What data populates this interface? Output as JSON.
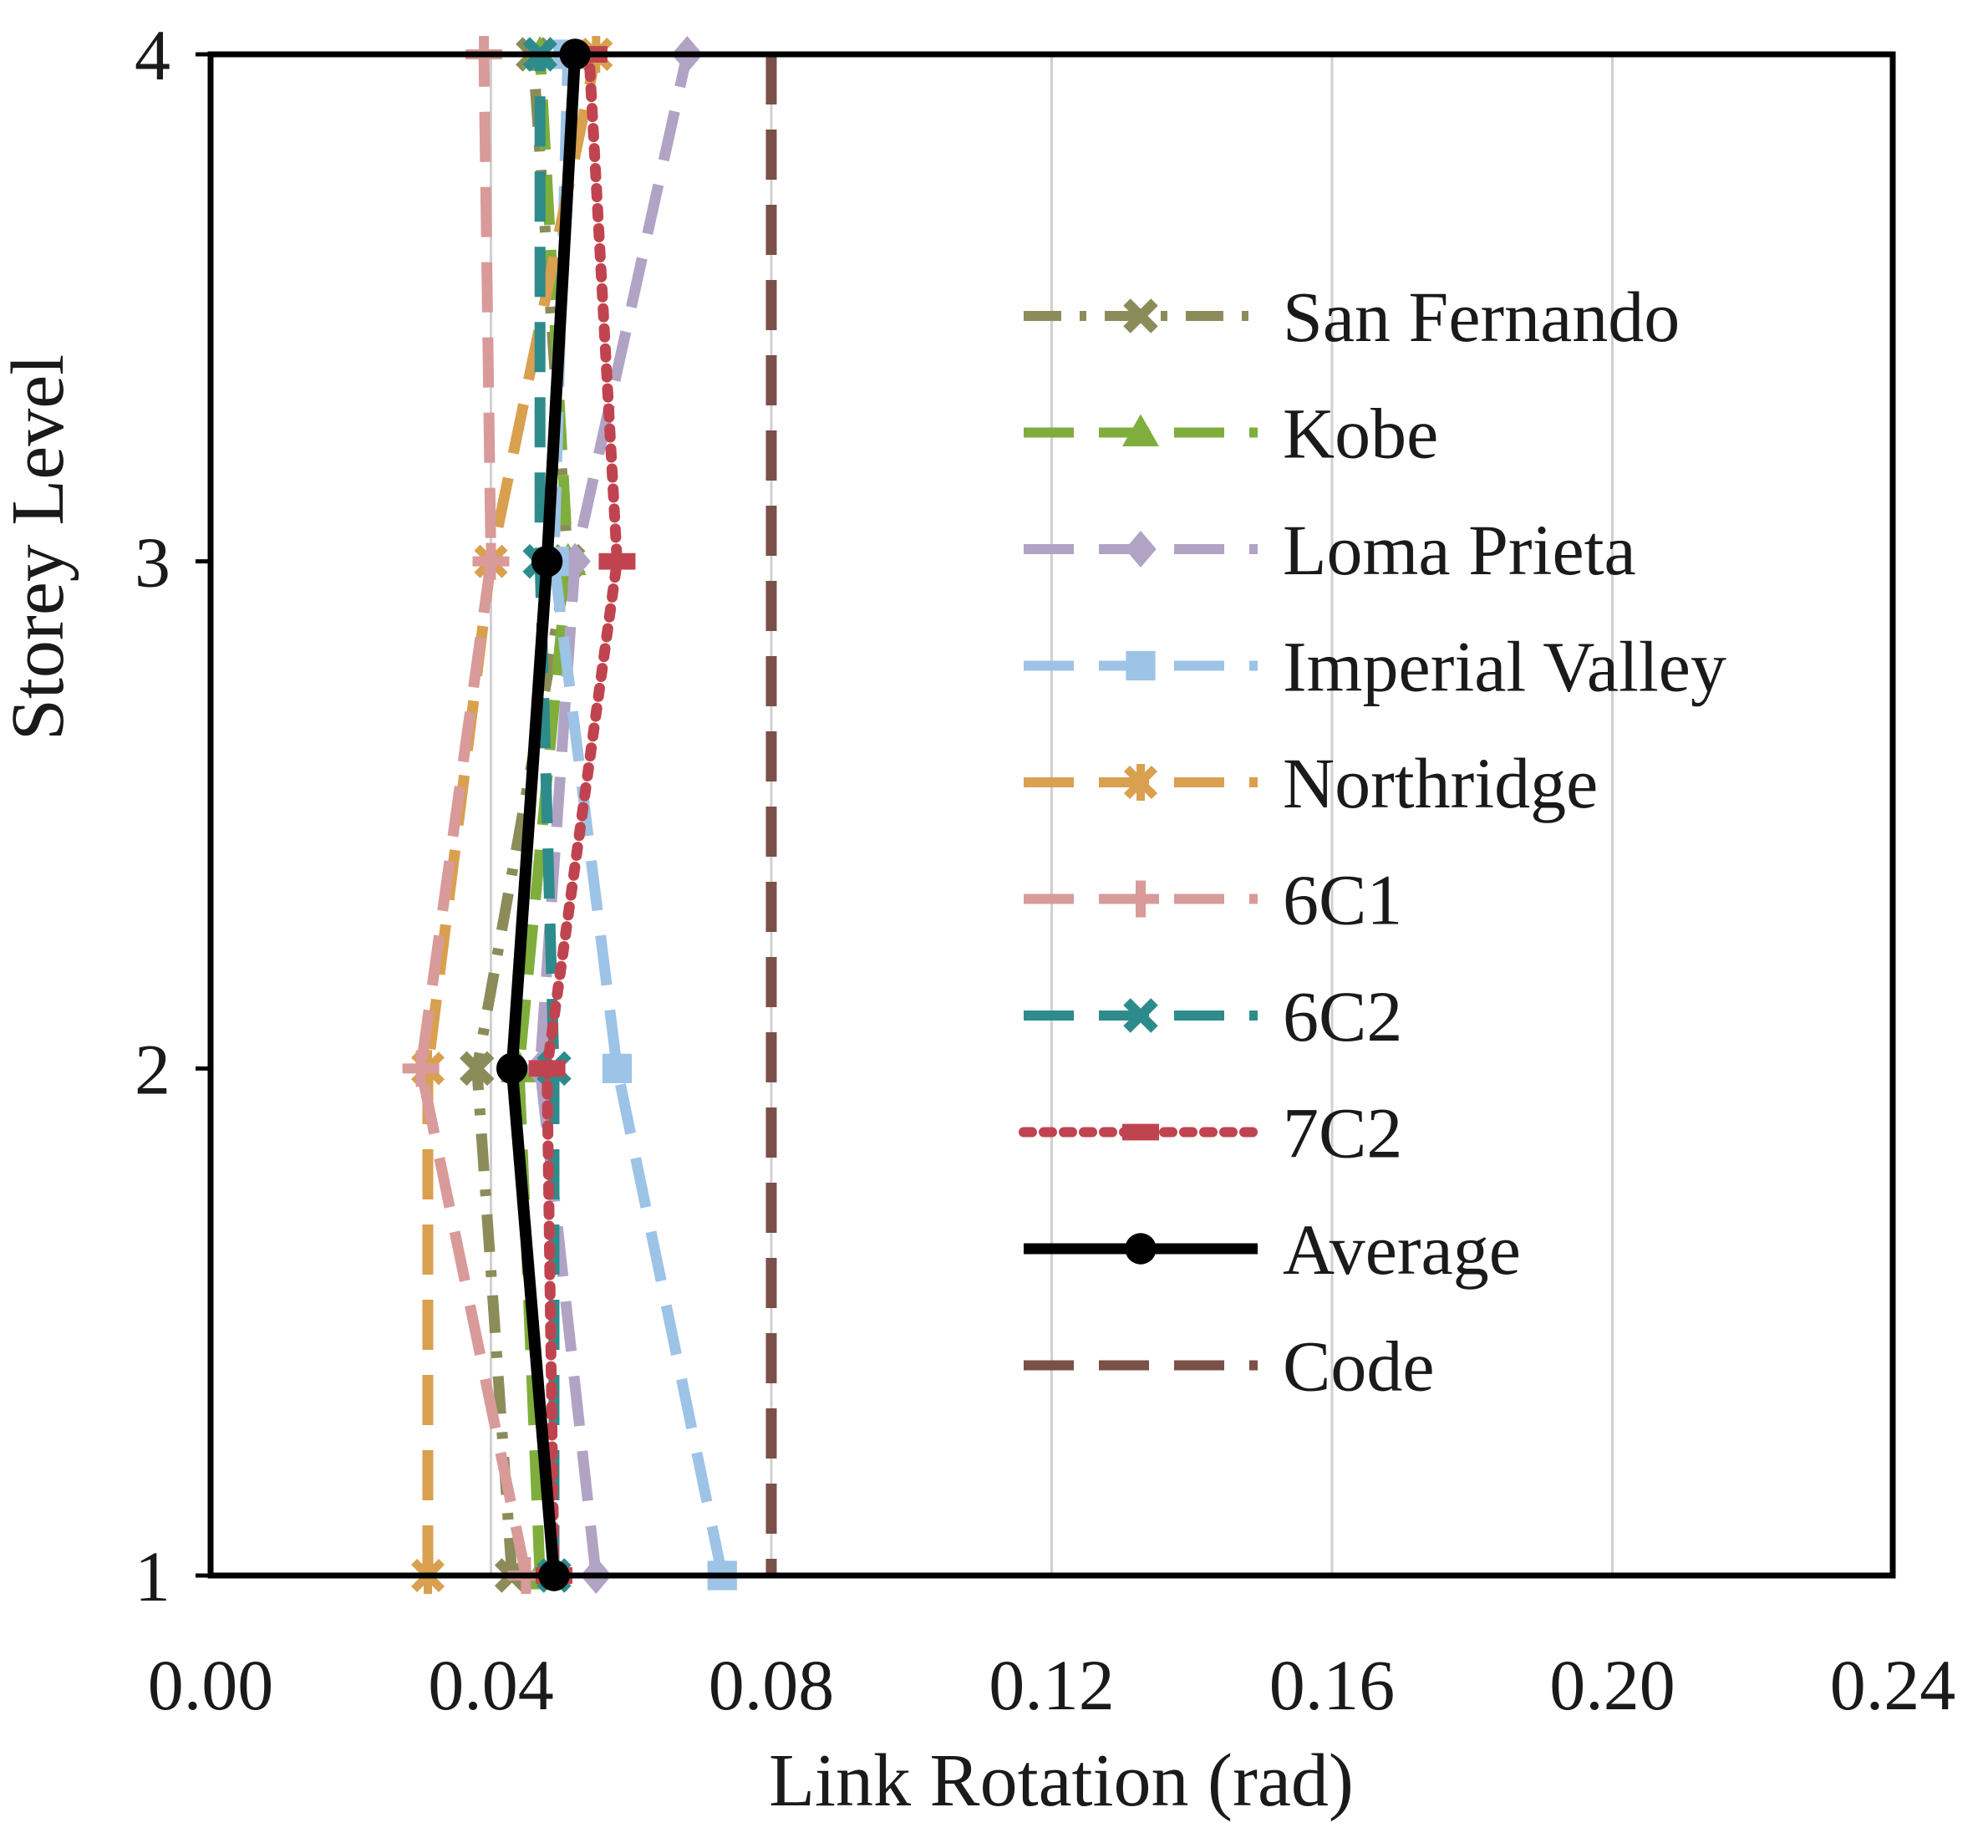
{
  "chart_data": {
    "type": "line",
    "title": "",
    "xlabel": "Link Rotation (rad)",
    "ylabel": "Storey Level",
    "xlim": [
      0,
      0.24
    ],
    "ylim": [
      1,
      4
    ],
    "x_ticks": [
      "0.00",
      "0.04",
      "0.08",
      "0.12",
      "0.16",
      "0.20",
      "0.24"
    ],
    "y_ticks": [
      "1",
      "2",
      "3",
      "4"
    ],
    "y_levels": [
      1,
      2,
      3,
      4
    ],
    "grid": "vertical",
    "legend_position": "right",
    "series": [
      {
        "name": "San Fernando",
        "color": "#8c8c5a",
        "dash": "dash-dot",
        "marker": "x",
        "x": [
          0.043,
          0.038,
          0.051,
          0.046
        ]
      },
      {
        "name": "Kobe",
        "color": "#7fae3c",
        "dash": "long-dash",
        "marker": "triangle",
        "x": [
          0.047,
          0.044,
          0.051,
          0.047
        ]
      },
      {
        "name": "Loma Prieta",
        "color": "#b0a3c4",
        "dash": "long-dash",
        "marker": "diamond",
        "x": [
          0.055,
          0.047,
          0.052,
          0.068
        ]
      },
      {
        "name": "Imperial Valley",
        "color": "#9dc3e6",
        "dash": "long-dash",
        "marker": "square",
        "x": [
          0.073,
          0.058,
          0.049,
          0.051
        ]
      },
      {
        "name": "Northridge",
        "color": "#d9a04f",
        "dash": "long-dash",
        "marker": "asterisk",
        "x": [
          0.031,
          0.031,
          0.04,
          0.055
        ]
      },
      {
        "name": "6C1",
        "color": "#d99a9a",
        "dash": "long-dash",
        "marker": "plus",
        "x": [
          0.045,
          0.03,
          0.04,
          0.039
        ]
      },
      {
        "name": "6C2",
        "color": "#2e8b8b",
        "dash": "long-dash",
        "marker": "x",
        "x": [
          0.049,
          0.049,
          0.047,
          0.047
        ]
      },
      {
        "name": "7C2",
        "color": "#c0444f",
        "dash": "dotted",
        "marker": "dash",
        "x": [
          0.049,
          0.048,
          0.058,
          0.054
        ]
      },
      {
        "name": "Average",
        "color": "#000000",
        "dash": "solid",
        "marker": "circle",
        "x": [
          0.049,
          0.043,
          0.048,
          0.052
        ]
      },
      {
        "name": "Code",
        "color": "#7a5048",
        "dash": "long-dash",
        "marker": "none",
        "x": [
          0.08,
          0.08,
          0.08,
          0.08
        ]
      }
    ]
  }
}
